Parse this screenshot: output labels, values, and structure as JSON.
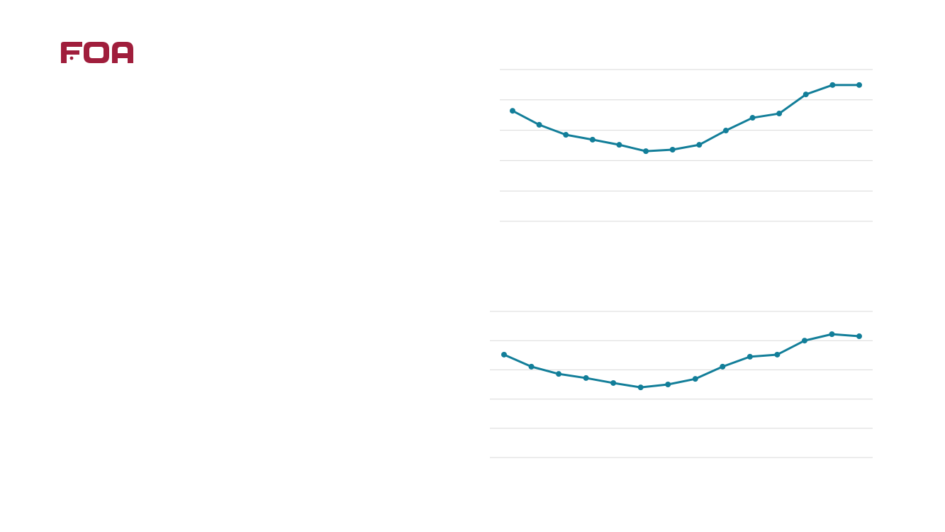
{
  "brand": {
    "logo_text": "FOA",
    "color": "#A01E3C"
  },
  "chart_data": [
    {
      "type": "line",
      "title": "",
      "xlabel": "",
      "ylabel": "",
      "ylim": [
        0,
        5
      ],
      "grid": true,
      "line_color": "#127E99",
      "grid_color": "#D9D9D9",
      "x": [
        1,
        2,
        3,
        4,
        5,
        6,
        7,
        8,
        9,
        10,
        11,
        12,
        13,
        14
      ],
      "values": [
        3.64,
        3.18,
        2.85,
        2.69,
        2.52,
        2.31,
        2.36,
        2.52,
        2.99,
        3.41,
        3.55,
        4.18,
        4.49,
        4.49
      ]
    },
    {
      "type": "line",
      "title": "",
      "xlabel": "",
      "ylabel": "",
      "ylim": [
        0,
        5
      ],
      "grid": true,
      "line_color": "#127E99",
      "grid_color": "#D9D9D9",
      "x": [
        1,
        2,
        3,
        4,
        5,
        6,
        7,
        8,
        9,
        10,
        11,
        12,
        13,
        14
      ],
      "values": [
        3.52,
        3.11,
        2.86,
        2.72,
        2.55,
        2.4,
        2.5,
        2.69,
        3.11,
        3.45,
        3.52,
        4.0,
        4.22,
        4.15
      ]
    }
  ]
}
